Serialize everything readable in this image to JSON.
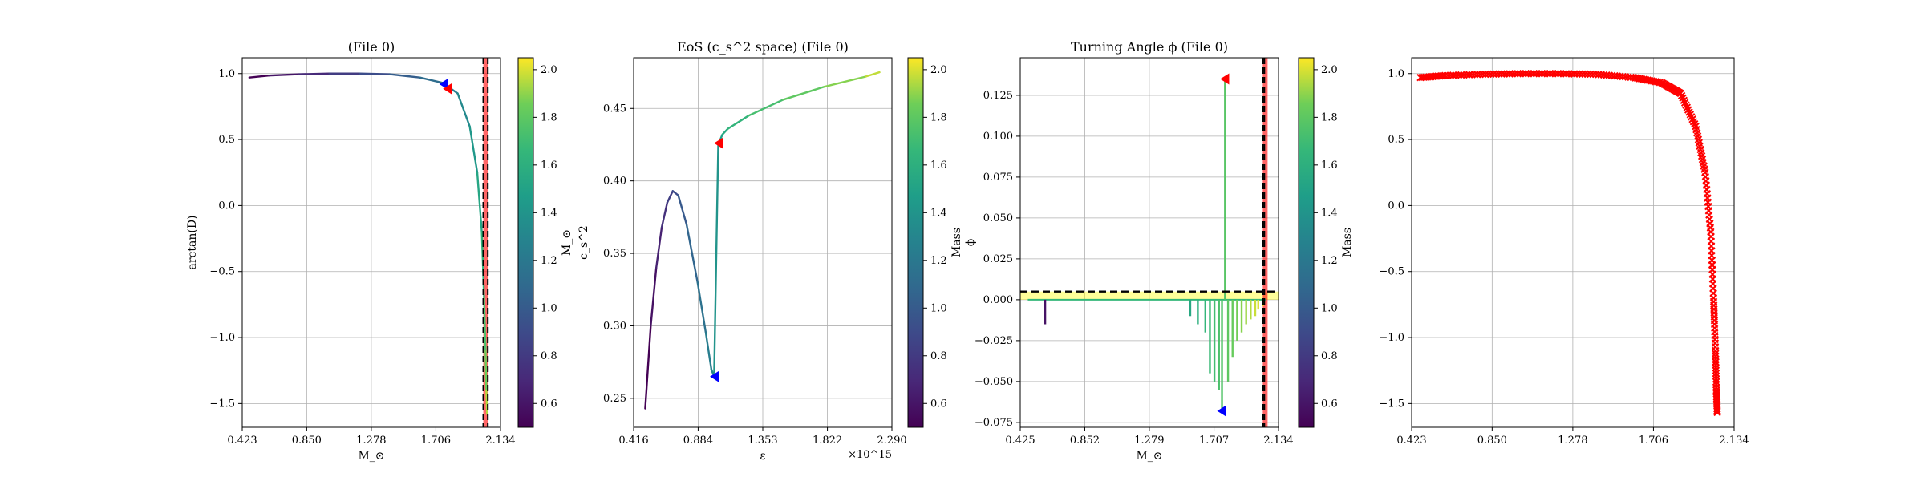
{
  "figure": {
    "background": "#ffffff"
  },
  "chart_data": [
    {
      "type": "line",
      "title": "(File 0)",
      "xlabel": "M_⊙",
      "ylabel": "arctan(D)",
      "xlim": [
        0.423,
        2.134
      ],
      "ylim": [
        -1.68,
        1.12
      ],
      "xticks": [
        0.423,
        0.85,
        1.278,
        1.706,
        2.134
      ],
      "xtick_labels": [
        "0.423",
        "0.850",
        "1.278",
        "1.706",
        "2.134"
      ],
      "yticks": [
        -1.5,
        -1.0,
        -0.5,
        0.0,
        0.5,
        1.0
      ],
      "ytick_labels": [
        "−1.5",
        "−1.0",
        "−0.5",
        "0.0",
        "0.5",
        "1.0"
      ],
      "grid": true,
      "colorbar": {
        "label": "M_⊙",
        "range": [
          0.5,
          2.05
        ],
        "ticks": [
          0.6,
          0.8,
          1.0,
          1.2,
          1.4,
          1.6,
          1.8,
          2.0
        ],
        "tick_labels": [
          "0.6",
          "0.8",
          "1.0",
          "1.2",
          "1.4",
          "1.6",
          "1.8",
          "2.0"
        ],
        "colormap": "viridis"
      },
      "series": [
        {
          "x": [
            0.47,
            0.6,
            0.8,
            1.0,
            1.2,
            1.4,
            1.6,
            1.75,
            1.85,
            1.93,
            1.98,
            2.01,
            2.025,
            2.035,
            2.04,
            2.045
          ],
          "y": [
            0.97,
            0.985,
            0.995,
            1.0,
            1.0,
            0.995,
            0.97,
            0.93,
            0.85,
            0.6,
            0.25,
            -0.2,
            -0.7,
            -1.1,
            -1.4,
            -1.58
          ],
          "color": "mass-colormap"
        }
      ],
      "markers": [
        {
          "shape": "triangle-left",
          "color": "#0000ff",
          "x": 1.765,
          "y": 0.92
        },
        {
          "shape": "triangle-left",
          "color": "#ff0000",
          "x": 1.79,
          "y": 0.885
        }
      ],
      "vlines": [
        {
          "x": 2.02,
          "style": "dashed",
          "color": "#000000"
        },
        {
          "x": 2.05,
          "style": "dashed",
          "color": "#000000"
        }
      ],
      "vspans": [
        {
          "x0": 2.02,
          "x1": 2.05,
          "color": "#ff0000",
          "alpha": 0.6
        }
      ]
    },
    {
      "type": "line",
      "title": "EoS (c_s^2 space) (File 0)",
      "xlabel": "ε",
      "ylabel": "c_s^2",
      "xlim": [
        0.416,
        2.29
      ],
      "ylim": [
        0.23,
        0.485
      ],
      "x_offset_text": "×10^15",
      "xticks": [
        0.416,
        0.884,
        1.353,
        1.822,
        2.29
      ],
      "xtick_labels": [
        "0.416",
        "0.884",
        "1.353",
        "1.822",
        "2.290"
      ],
      "yticks": [
        0.25,
        0.3,
        0.35,
        0.4,
        0.45
      ],
      "ytick_labels": [
        "0.25",
        "0.30",
        "0.35",
        "0.40",
        "0.45"
      ],
      "grid": true,
      "colorbar": {
        "label": "Mass",
        "range": [
          0.5,
          2.05
        ],
        "ticks": [
          0.6,
          0.8,
          1.0,
          1.2,
          1.4,
          1.6,
          1.8,
          2.0
        ],
        "tick_labels": [
          "0.6",
          "0.8",
          "1.0",
          "1.2",
          "1.4",
          "1.6",
          "1.8",
          "2.0"
        ],
        "colormap": "viridis"
      },
      "series": [
        {
          "x": [
            0.5,
            0.54,
            0.58,
            0.62,
            0.66,
            0.7,
            0.74,
            0.8,
            0.88,
            0.94,
            0.98,
            1.0,
            1.03,
            1.06,
            1.1,
            1.25,
            1.5,
            1.8,
            2.1,
            2.2
          ],
          "y": [
            0.243,
            0.3,
            0.34,
            0.368,
            0.385,
            0.393,
            0.39,
            0.37,
            0.33,
            0.295,
            0.27,
            0.265,
            0.425,
            0.432,
            0.436,
            0.445,
            0.456,
            0.465,
            0.472,
            0.475
          ],
          "color": "mass-colormap"
        }
      ],
      "markers": [
        {
          "shape": "triangle-left",
          "color": "#0000ff",
          "x": 1.01,
          "y": 0.265
        },
        {
          "shape": "triangle-left",
          "color": "#ff0000",
          "x": 1.04,
          "y": 0.426
        }
      ]
    },
    {
      "type": "bar",
      "title": "Turning Angle ϕ (File 0)",
      "xlabel": "M_⊙",
      "ylabel": "ϕ",
      "xlim": [
        0.425,
        2.134
      ],
      "ylim": [
        -0.078,
        0.148
      ],
      "xticks": [
        0.425,
        0.852,
        1.279,
        1.707,
        2.134
      ],
      "xtick_labels": [
        "0.425",
        "0.852",
        "1.279",
        "1.707",
        "2.134"
      ],
      "yticks": [
        -0.075,
        -0.05,
        -0.025,
        0.0,
        0.025,
        0.05,
        0.075,
        0.1,
        0.125
      ],
      "ytick_labels": [
        "−0.075",
        "−0.050",
        "−0.025",
        "0.000",
        "0.025",
        "0.050",
        "0.075",
        "0.100",
        "0.125"
      ],
      "grid": true,
      "colorbar": {
        "label": "Mass",
        "range": [
          0.5,
          2.05
        ],
        "ticks": [
          0.6,
          0.8,
          1.0,
          1.2,
          1.4,
          1.6,
          1.8,
          2.0
        ],
        "tick_labels": [
          "0.6",
          "0.8",
          "1.0",
          "1.2",
          "1.4",
          "1.6",
          "1.8",
          "2.0"
        ],
        "colormap": "viridis"
      },
      "spikes": [
        {
          "x": 0.59,
          "y": -0.015
        },
        {
          "x": 1.55,
          "y": -0.01
        },
        {
          "x": 1.6,
          "y": -0.015
        },
        {
          "x": 1.65,
          "y": -0.02
        },
        {
          "x": 1.68,
          "y": -0.045
        },
        {
          "x": 1.71,
          "y": -0.05
        },
        {
          "x": 1.74,
          "y": -0.055
        },
        {
          "x": 1.76,
          "y": -0.068
        },
        {
          "x": 1.78,
          "y": 0.135
        },
        {
          "x": 1.8,
          "y": -0.05
        },
        {
          "x": 1.83,
          "y": -0.035
        },
        {
          "x": 1.86,
          "y": -0.025
        },
        {
          "x": 1.89,
          "y": -0.02
        },
        {
          "x": 1.92,
          "y": -0.015
        },
        {
          "x": 1.95,
          "y": -0.012
        },
        {
          "x": 1.98,
          "y": -0.01
        },
        {
          "x": 2.0,
          "y": -0.006
        },
        {
          "x": 2.03,
          "y": -0.004
        }
      ],
      "markers": [
        {
          "shape": "triangle-left",
          "color": "#ff0000",
          "x": 1.785,
          "y": 0.135
        },
        {
          "shape": "triangle-left",
          "color": "#0000ff",
          "x": 1.765,
          "y": -0.068
        }
      ],
      "hlines": [
        {
          "y": 0.005,
          "style": "dashed",
          "color": "#000000"
        }
      ],
      "hspans": [
        {
          "y0": 0.0,
          "y1": 0.005,
          "color": "#ffff00",
          "alpha": 0.4
        }
      ],
      "vlines": [
        {
          "x": 2.03,
          "style": "dashed",
          "color": "#000000"
        },
        {
          "x": 2.04,
          "style": "dashed",
          "color": "#000000"
        }
      ],
      "vspans": [
        {
          "x0": 2.03,
          "x1": 2.04,
          "color": "#ff0000",
          "alpha": 0.6
        }
      ]
    },
    {
      "type": "scatter",
      "title": "",
      "xlabel": "",
      "ylabel": "",
      "xlim": [
        0.423,
        2.134
      ],
      "ylim": [
        -1.68,
        1.12
      ],
      "xticks": [
        0.423,
        0.85,
        1.278,
        1.706,
        2.134
      ],
      "xtick_labels": [
        "0.423",
        "0.850",
        "1.278",
        "1.706",
        "2.134"
      ],
      "yticks": [
        -1.5,
        -1.0,
        -0.5,
        0.0,
        0.5,
        1.0
      ],
      "ytick_labels": [
        "−1.5",
        "−1.0",
        "−0.5",
        "0.0",
        "0.5",
        "1.0"
      ],
      "grid": true,
      "marker": "x",
      "color": "#ff0000",
      "series": [
        {
          "x": [
            0.47,
            0.6,
            0.8,
            1.0,
            1.2,
            1.4,
            1.6,
            1.75,
            1.85,
            1.93,
            1.98,
            2.01,
            2.025,
            2.035,
            2.04,
            2.045
          ],
          "y": [
            0.97,
            0.985,
            0.995,
            1.0,
            1.0,
            0.995,
            0.97,
            0.93,
            0.85,
            0.6,
            0.25,
            -0.2,
            -0.7,
            -1.1,
            -1.4,
            -1.58
          ]
        }
      ]
    }
  ]
}
